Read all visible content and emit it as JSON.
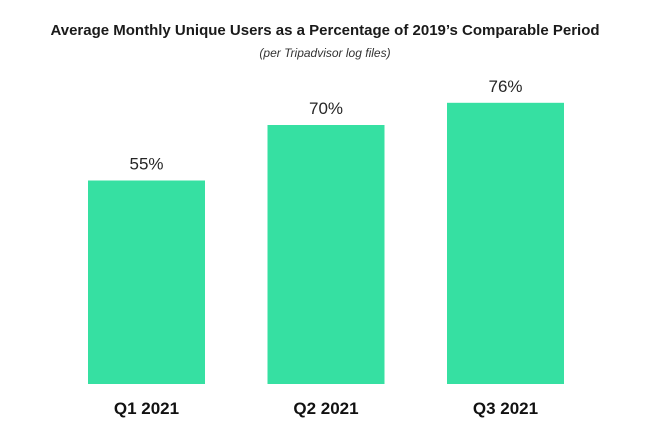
{
  "chart_data": {
    "type": "bar",
    "title": "Average Monthly Unique Users as a Percentage of 2019’s Comparable Period",
    "subtitle": "(per Tripadvisor log files)",
    "categories": [
      "Q1 2021",
      "Q2 2021",
      "Q3 2021"
    ],
    "values": [
      55,
      70,
      76
    ],
    "value_labels": [
      "55%",
      "70%",
      "76%"
    ],
    "xlabel": "",
    "ylabel": "",
    "ylim": [
      0,
      100
    ],
    "grid": false,
    "legend": "none",
    "bar_color": "#36e0a2"
  }
}
